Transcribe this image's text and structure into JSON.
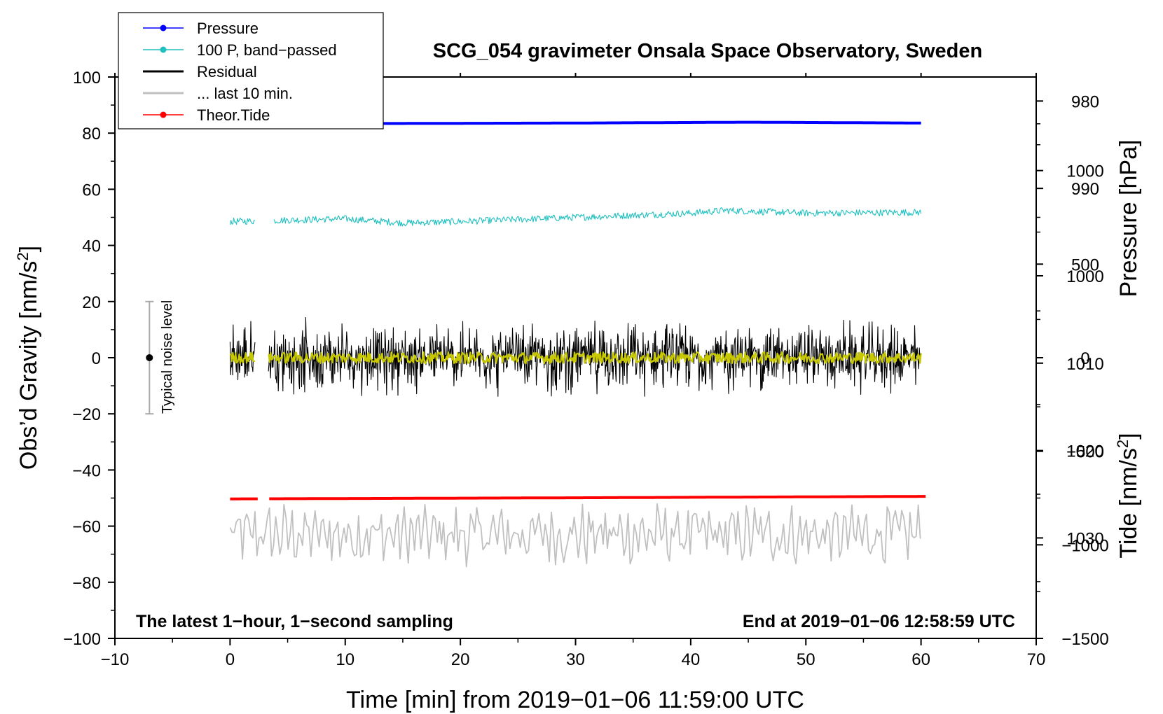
{
  "chart_data": {
    "type": "line",
    "title": "SCG_054 gravimeter Onsala Space Observatory, Sweden",
    "xlabel": "Time [min] from 2019−01−06 11:59:00 UTC",
    "ylabel": "Obs’d Gravity [nm/s²]",
    "ylabel_main": "Obs’d Gravity [nm/s",
    "ylabel_sup": "2",
    "ylabel_end": "]",
    "right_label_pressure": "Pressure [hPa]",
    "right_label_tide_main": "Tide [nm/s",
    "right_label_tide_sup": "2",
    "right_label_tide_end": "]",
    "xlim": [
      -10,
      70
    ],
    "ylim": [
      -100,
      100
    ],
    "pressure_lim": [
      1041.5,
      977.25
    ],
    "tide_lim": [
      -1500,
      1500
    ],
    "x_ticks": [
      "−10",
      "0",
      "10",
      "20",
      "30",
      "40",
      "50",
      "60",
      "70"
    ],
    "x_tick_values": [
      -10,
      0,
      10,
      20,
      30,
      40,
      50,
      60,
      70
    ],
    "y_ticks": [
      "100",
      "80",
      "60",
      "40",
      "20",
      "0",
      "−20",
      "−40",
      "−60",
      "−80",
      "−100"
    ],
    "y_tick_values": [
      100,
      80,
      60,
      40,
      20,
      0,
      -20,
      -40,
      -60,
      -80,
      -100
    ],
    "pressure_ticks": [
      "1030",
      "1020",
      "1010",
      "1000",
      "990",
      "980"
    ],
    "pressure_tick_values": [
      1030,
      1020,
      1010,
      1000,
      990,
      980
    ],
    "tide_ticks": [
      "1000",
      "500",
      "0",
      "−500",
      "−1000",
      "−1500"
    ],
    "tide_tick_values": [
      1000,
      500,
      0,
      -500,
      -1000,
      -1500
    ],
    "annotation_left": "The latest 1−hour, 1−second sampling",
    "annotation_right": "End at 2019−01−06 12:58:59 UTC",
    "noise_label": "Typical noise level",
    "noise_bar": {
      "x": -7,
      "center": 0,
      "half_range": 20
    },
    "legend": [
      {
        "label": "Pressure",
        "color": "#0000ff",
        "marker": true
      },
      {
        "label": "100 P, band−passed",
        "color": "#20c0c0",
        "marker": true
      },
      {
        "label": "Residual",
        "color": "#000000",
        "marker": false
      },
      {
        "label": "... last 10 min.",
        "color": "#c0c0c0",
        "marker": false
      },
      {
        "label": "Theor.Tide",
        "color": "#ff0000",
        "marker": true
      }
    ],
    "series": [
      {
        "name": "Pressure",
        "color": "#0000ff",
        "gap": [
          2.2,
          3.3
        ],
        "x_range": [
          0,
          60
        ],
        "x": [
          0,
          10,
          20,
          30,
          40,
          45,
          50,
          55,
          60
        ],
        "y": [
          83.2,
          83.4,
          83.5,
          83.6,
          83.8,
          83.9,
          83.8,
          83.7,
          83.6
        ]
      },
      {
        "name": "100 P, band−passed",
        "color": "#20c0c0",
        "gap": [
          2.2,
          3.8
        ],
        "x_range": [
          0,
          60
        ],
        "noise_amp": 1.2,
        "x": [
          0,
          10,
          15,
          20,
          30,
          40,
          43,
          50,
          60
        ],
        "y": [
          48.5,
          49.5,
          48.0,
          48.5,
          50.0,
          51.5,
          52.5,
          51.5,
          51.8
        ]
      },
      {
        "name": "Residual",
        "color": "#000000",
        "gap": [
          2.2,
          3.3
        ],
        "x_range": [
          0,
          60
        ],
        "noise_amp": 15,
        "x": [
          0,
          60
        ],
        "y": [
          0,
          0
        ]
      },
      {
        "name": "... last 10 min.",
        "color": "#c0c0c0",
        "gap": [],
        "x_range": [
          0,
          60
        ],
        "noise_amp": 8,
        "x": [
          0,
          60
        ],
        "y": [
          -63,
          -63
        ]
      },
      {
        "name": "Theor.Tide",
        "color": "#ff0000",
        "gap": [
          2.5,
          3.4
        ],
        "x_range": [
          0,
          60.5
        ],
        "x": [
          0,
          30,
          60.5
        ],
        "y": [
          -50.3,
          -49.9,
          -49.4
        ]
      },
      {
        "name": "Residual smoothed",
        "color": "#c8c800",
        "gap": [
          2.2,
          3.3
        ],
        "x_range": [
          0,
          60
        ],
        "noise_amp": 2,
        "x": [
          0,
          60
        ],
        "y": [
          0,
          0
        ]
      }
    ]
  }
}
